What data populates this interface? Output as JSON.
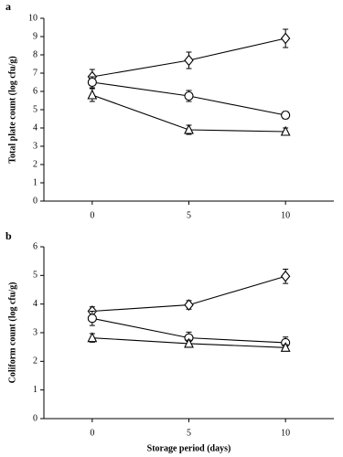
{
  "chart_data": [
    {
      "type": "line",
      "panel_label": "a",
      "y_label": "Total plate count (log cfu/g)",
      "x": [
        0,
        5,
        10
      ],
      "xlim": [
        -2.5,
        12.5
      ],
      "xticks": [
        0,
        5,
        10
      ],
      "ylim": [
        0,
        10
      ],
      "yticks": [
        0,
        1,
        2,
        3,
        4,
        5,
        6,
        7,
        8,
        9,
        10
      ],
      "series": [
        {
          "marker": "diamond",
          "color": "#000000",
          "values": [
            6.8,
            7.7,
            8.9
          ],
          "errors": [
            0.4,
            0.45,
            0.5
          ]
        },
        {
          "marker": "circle",
          "color": "#000000",
          "values": [
            6.5,
            5.75,
            4.7
          ],
          "errors": [
            0.3,
            0.3,
            0.2
          ]
        },
        {
          "marker": "triangle",
          "color": "#000000",
          "values": [
            5.8,
            3.9,
            3.8
          ],
          "errors": [
            0.35,
            0.25,
            0.2
          ]
        }
      ]
    },
    {
      "type": "line",
      "panel_label": "b",
      "y_label": "Coliform count (log cfu/g)",
      "x_label": "Storage period (days)",
      "x": [
        0,
        5,
        10
      ],
      "xlim": [
        -2.5,
        12.5
      ],
      "xticks": [
        0,
        5,
        10
      ],
      "ylim": [
        0,
        6
      ],
      "yticks": [
        0,
        1,
        2,
        3,
        4,
        5,
        6
      ],
      "series": [
        {
          "marker": "diamond",
          "color": "#000000",
          "values": [
            3.75,
            3.97,
            4.97
          ],
          "errors": [
            0.15,
            0.15,
            0.25
          ]
        },
        {
          "marker": "circle",
          "color": "#000000",
          "values": [
            3.5,
            2.82,
            2.65
          ],
          "errors": [
            0.25,
            0.2,
            0.2
          ]
        },
        {
          "marker": "triangle",
          "color": "#000000",
          "values": [
            2.82,
            2.62,
            2.48
          ],
          "errors": [
            0.15,
            0.12,
            0.1
          ]
        }
      ]
    }
  ]
}
